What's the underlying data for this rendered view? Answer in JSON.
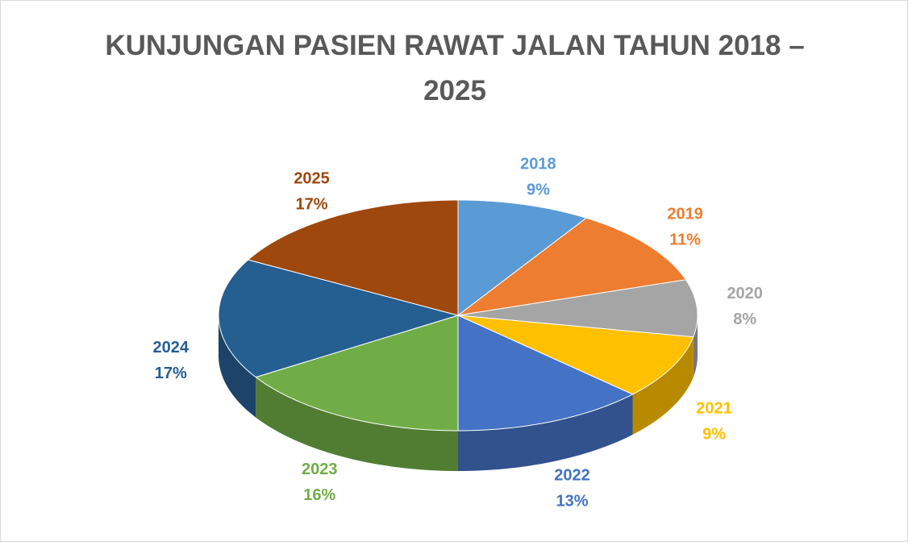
{
  "chart_data": {
    "type": "pie3d",
    "title": "KUNJUNGAN PASIEN RAWAT JALAN TAHUN 2018 – 2025",
    "categories": [
      "2018",
      "2019",
      "2020",
      "2021",
      "2022",
      "2023",
      "2024",
      "2025"
    ],
    "values": [
      9,
      11,
      8,
      9,
      13,
      16,
      17,
      17
    ],
    "value_labels": [
      "9%",
      "11%",
      "8%",
      "9%",
      "13%",
      "16%",
      "17%",
      "17%"
    ],
    "colors": [
      "#5b9bd5",
      "#ed7d31",
      "#a5a5a5",
      "#ffc000",
      "#4472c4",
      "#70ad47",
      "#255e91",
      "#9e480e"
    ]
  }
}
